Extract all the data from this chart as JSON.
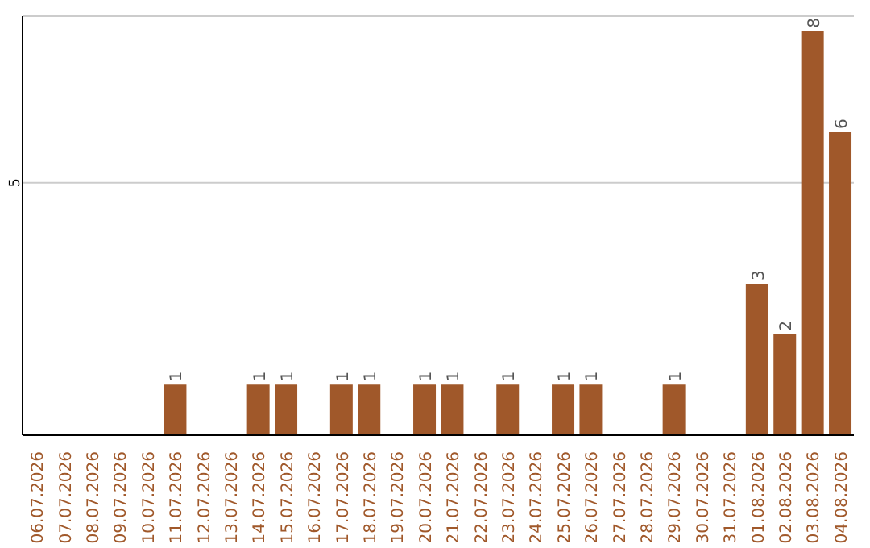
{
  "chart_data": {
    "type": "bar",
    "categories": [
      "06.07.2026",
      "07.07.2026",
      "08.07.2026",
      "09.07.2026",
      "10.07.2026",
      "11.07.2026",
      "12.07.2026",
      "13.07.2026",
      "14.07.2026",
      "15.07.2026",
      "16.07.2026",
      "17.07.2026",
      "18.07.2026",
      "19.07.2026",
      "20.07.2026",
      "21.07.2026",
      "22.07.2026",
      "23.07.2026",
      "24.07.2026",
      "25.07.2026",
      "26.07.2026",
      "27.07.2026",
      "28.07.2026",
      "29.07.2026",
      "30.07.2026",
      "31.07.2026",
      "01.08.2026",
      "02.08.2026",
      "03.08.2026",
      "04.08.2026"
    ],
    "values": [
      0,
      0,
      0,
      0,
      0,
      1,
      0,
      0,
      1,
      1,
      0,
      1,
      1,
      0,
      1,
      1,
      0,
      1,
      0,
      1,
      1,
      0,
      0,
      1,
      0,
      0,
      3,
      2,
      8,
      6
    ],
    "value_labels": [
      null,
      null,
      null,
      null,
      null,
      "1",
      null,
      null,
      "1",
      "1",
      null,
      "1",
      "1",
      null,
      "1",
      "1",
      null,
      "1",
      null,
      "1",
      "1",
      null,
      null,
      "1",
      null,
      null,
      "3",
      "2",
      "8",
      "6"
    ],
    "color": "#a0582a",
    "ylim": [
      0,
      8.3
    ],
    "yticks": [
      5
    ],
    "grid": "y"
  }
}
